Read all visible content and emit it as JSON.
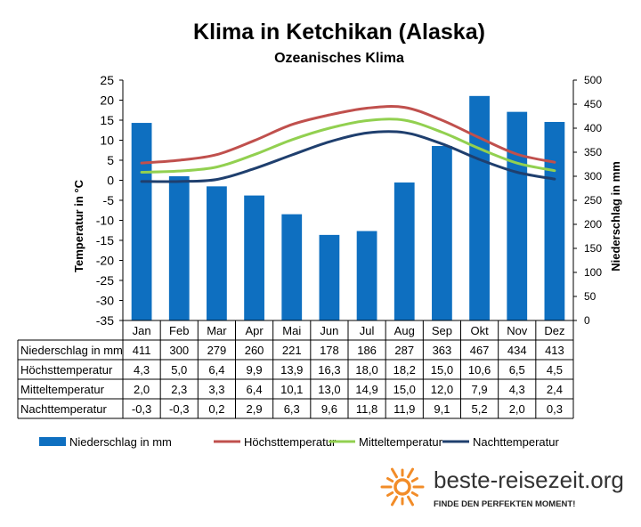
{
  "chart_data": {
    "type": "bar",
    "title": "Klima in Ketchikan (Alaska)",
    "subtitle": "Ozeanisches  Klima",
    "ylabel": "Temperatur in °C",
    "y2label": "Niederschlag in mm",
    "ylim": [
      -35,
      25
    ],
    "y2lim": [
      0,
      500
    ],
    "categories": [
      "Jan",
      "Feb",
      "Mar",
      "Apr",
      "Mai",
      "Jun",
      "Jul",
      "Aug",
      "Sep",
      "Okt",
      "Nov",
      "Dez"
    ],
    "series": [
      {
        "name": "Niederschlag in mm",
        "kind": "bar",
        "axis": "right",
        "color": "#0E6FC0",
        "values": [
          411,
          300,
          279,
          260,
          221,
          178,
          186,
          287,
          363,
          467,
          434,
          413
        ]
      },
      {
        "name": "Höchsttemperatur",
        "kind": "line",
        "axis": "left",
        "color": "#C0504D",
        "values": [
          4.3,
          5.0,
          6.4,
          9.9,
          13.9,
          16.3,
          18.0,
          18.2,
          15.0,
          10.6,
          6.5,
          4.5
        ]
      },
      {
        "name": "Mitteltemperatur",
        "kind": "line",
        "axis": "left",
        "color": "#92D050",
        "values": [
          2.0,
          2.3,
          3.3,
          6.4,
          10.1,
          13.0,
          14.9,
          15.0,
          12.0,
          7.9,
          4.3,
          2.4
        ]
      },
      {
        "name": "Nachttemperatur",
        "kind": "line",
        "axis": "left",
        "color": "#1F3F6E",
        "values": [
          -0.3,
          -0.3,
          0.2,
          2.9,
          6.3,
          9.6,
          11.8,
          11.9,
          9.1,
          5.2,
          2.0,
          0.3
        ]
      }
    ],
    "table_rows": [
      {
        "label": "Niederschlag in mm",
        "cells": [
          "411",
          "300",
          "279",
          "260",
          "221",
          "178",
          "186",
          "287",
          "363",
          "467",
          "434",
          "413"
        ]
      },
      {
        "label": "Höchsttemperatur",
        "cells": [
          "4,3",
          "5,0",
          "6,4",
          "9,9",
          "13,9",
          "16,3",
          "18,0",
          "18,2",
          "15,0",
          "10,6",
          "6,5",
          "4,5"
        ]
      },
      {
        "label": "Mitteltemperatur",
        "cells": [
          "2,0",
          "2,3",
          "3,3",
          "6,4",
          "10,1",
          "13,0",
          "14,9",
          "15,0",
          "12,0",
          "7,9",
          "4,3",
          "2,4"
        ]
      },
      {
        "label": "Nachttemperatur",
        "cells": [
          "-0,3",
          "-0,3",
          "0,2",
          "2,9",
          "6,3",
          "9,6",
          "11,8",
          "11,9",
          "9,1",
          "5,2",
          "2,0",
          "0,3"
        ]
      }
    ],
    "grid": false,
    "legend": "bottom"
  },
  "branding": {
    "site": "beste-reisezeit.org",
    "tagline": "FINDE DEN PERFEKTEN MOMENT!",
    "logo_icon": "sun-icon",
    "logo_color": "#F28C28"
  }
}
